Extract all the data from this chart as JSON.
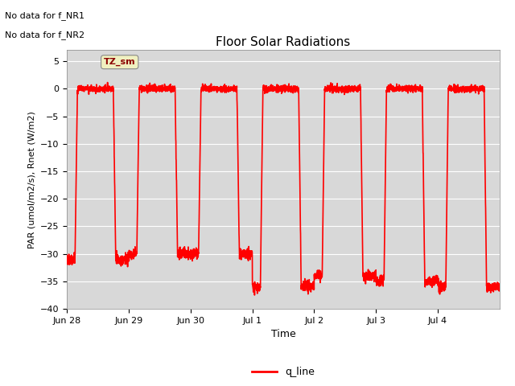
{
  "title": "Floor Solar Radiations",
  "xlabel": "Time",
  "ylabel": "PAR (umol/m2/s), Rnet (W/m2)",
  "ylim": [
    -40,
    7
  ],
  "yticks": [
    5,
    0,
    -5,
    -10,
    -15,
    -20,
    -25,
    -30,
    -35,
    -40
  ],
  "line_color": "red",
  "line_label": "q_line",
  "line_width": 1.2,
  "bg_color": "#d8d8d8",
  "legend_label_TZ": "TZ_sm",
  "no_data_text1": "No data for f_NR1",
  "no_data_text2": "No data for f_NR2",
  "xtick_labels": [
    "Jun 28",
    "Jun 29",
    "Jun 30",
    "Jul 1",
    "Jul 2",
    "Jul 3",
    "Jul 4"
  ],
  "xlim": [
    0,
    7
  ],
  "figsize": [
    6.4,
    4.8
  ],
  "dpi": 100
}
